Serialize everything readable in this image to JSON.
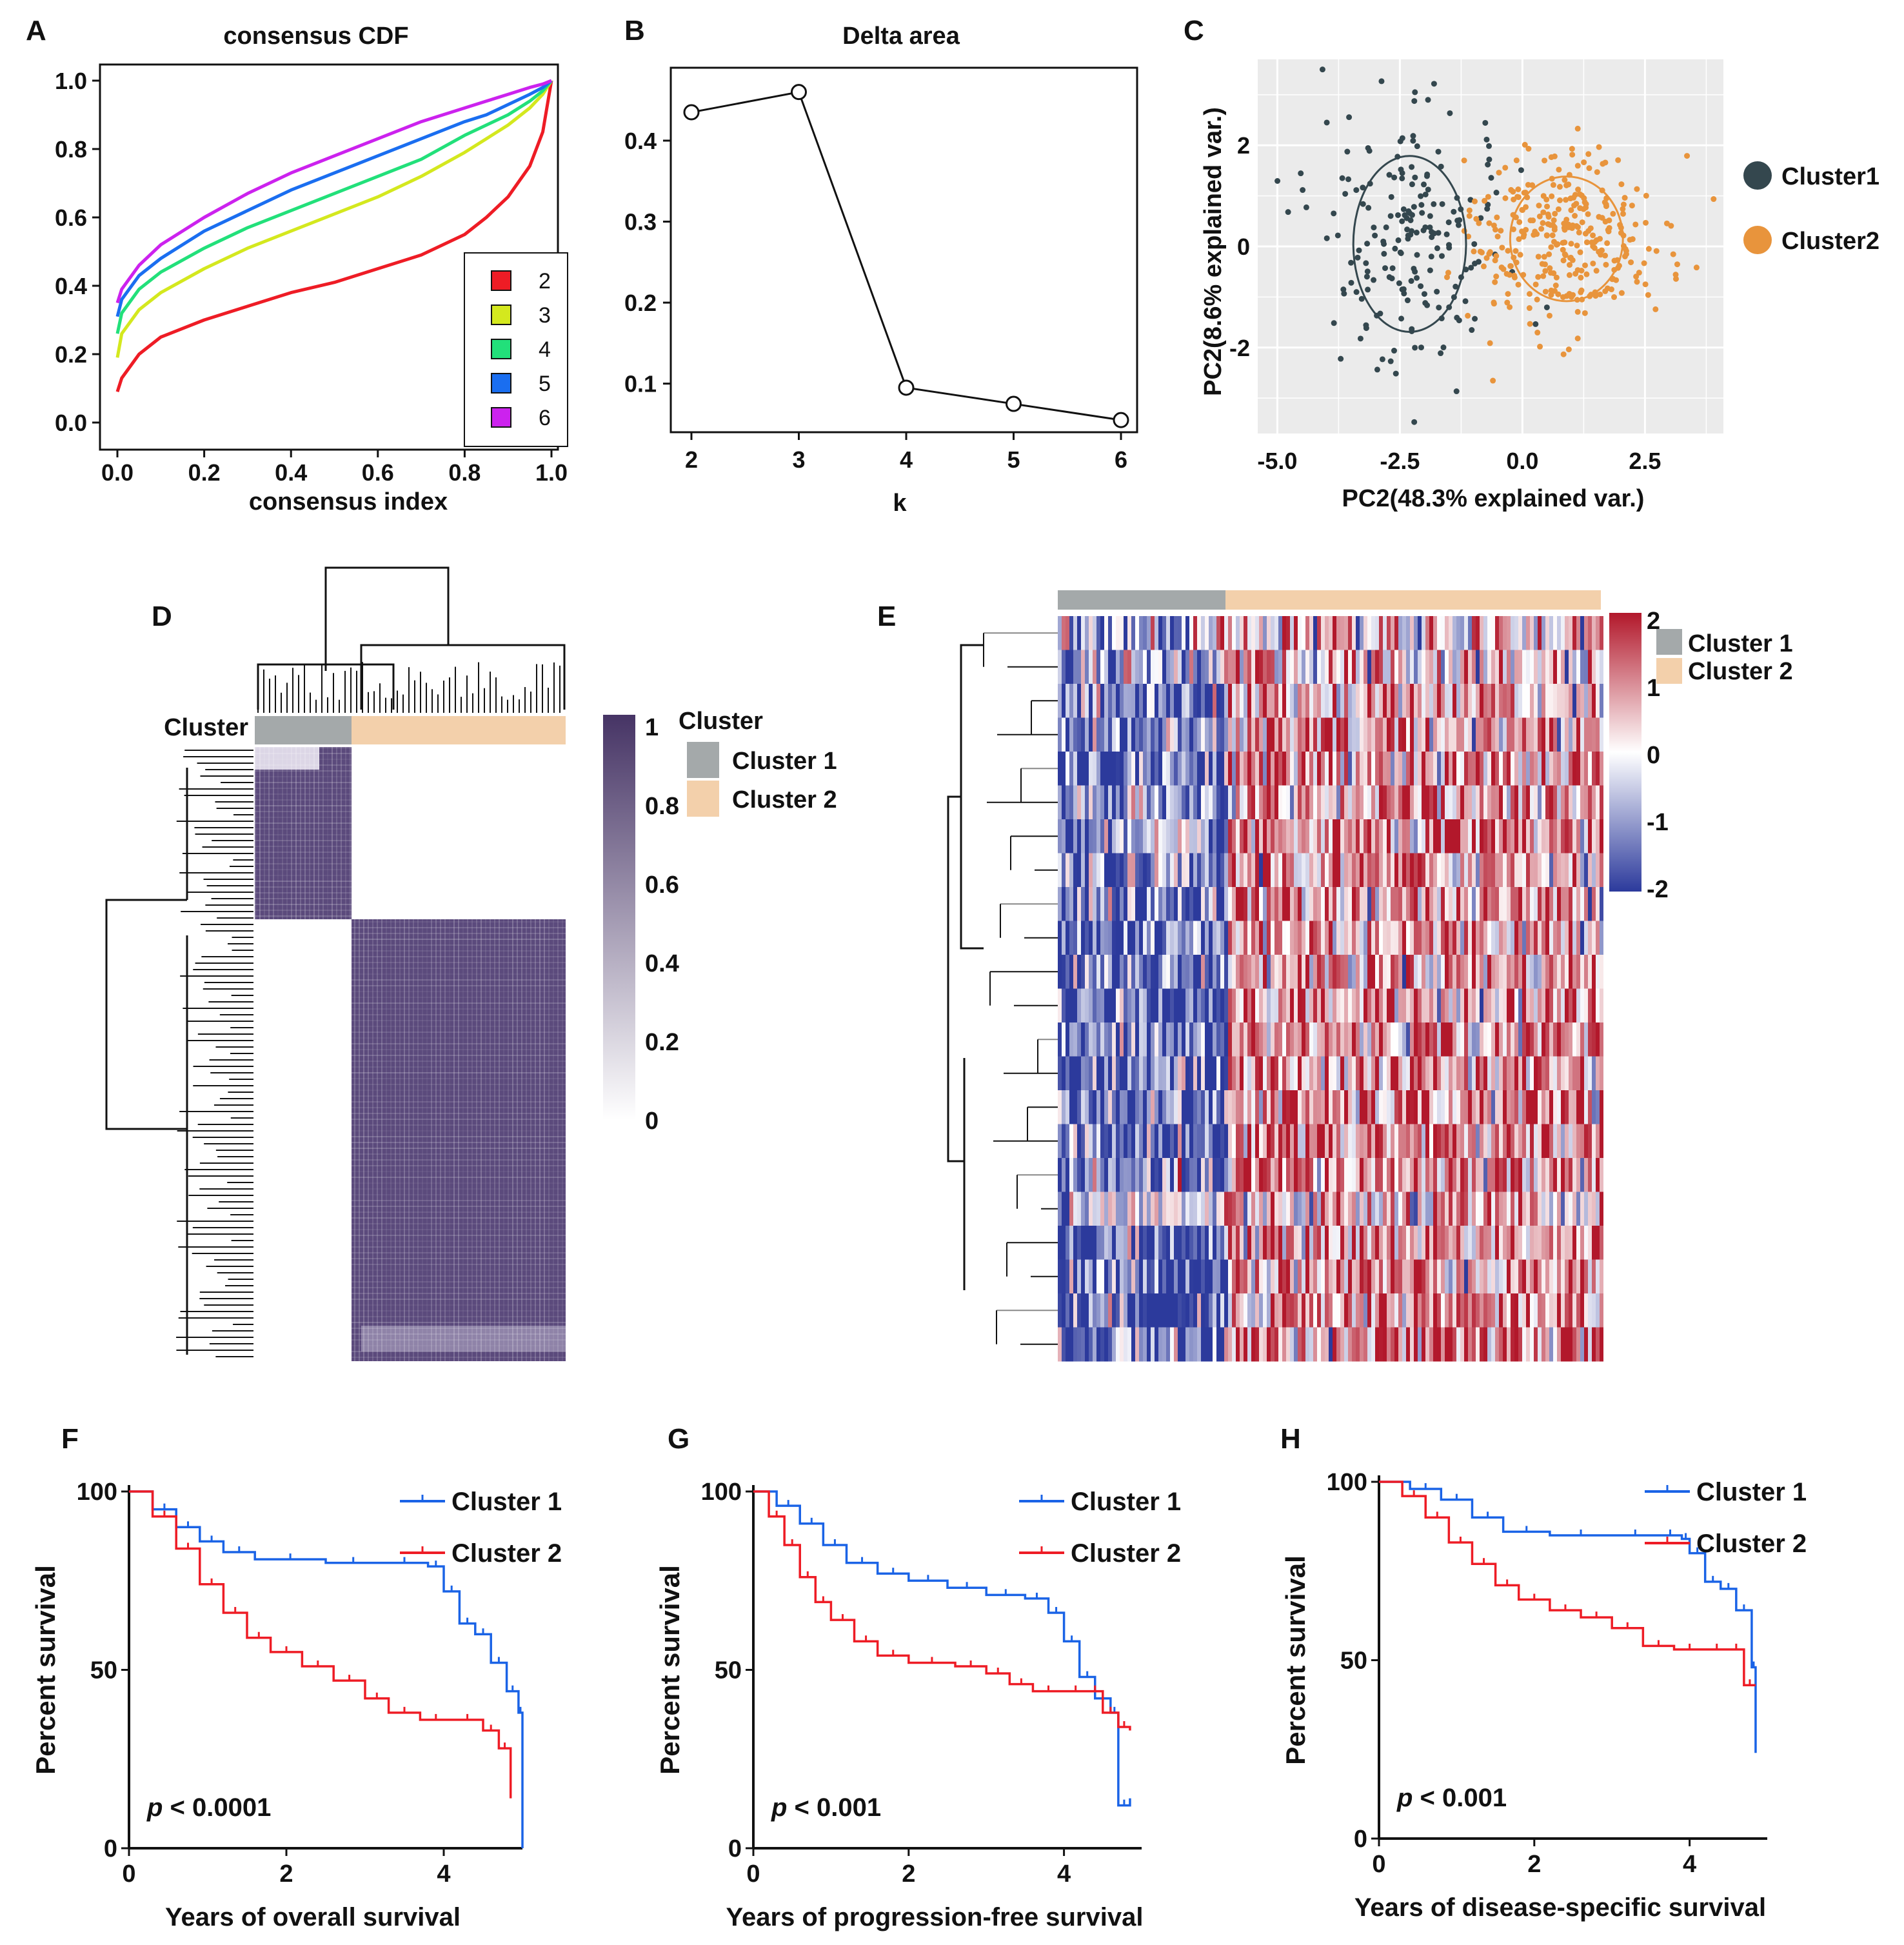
{
  "figure": {
    "panel_letters": [
      "A",
      "B",
      "C",
      "D",
      "E",
      "F",
      "G",
      "H"
    ]
  },
  "chart_data": [
    {
      "panel": "A",
      "type": "line",
      "title": "consensus CDF",
      "xlabel": "consensus index",
      "ylabel": "",
      "xlim": [
        0,
        1
      ],
      "ylim": [
        0,
        1
      ],
      "x_ticks": [
        "0.0",
        "0.2",
        "0.4",
        "0.6",
        "0.8",
        "1.0"
      ],
      "y_ticks": [
        "0.0",
        "0.2",
        "0.4",
        "0.6",
        "0.8",
        "1.0"
      ],
      "legend_position": "bottom-right",
      "x": [
        0,
        0.01,
        0.05,
        0.1,
        0.2,
        0.3,
        0.4,
        0.5,
        0.6,
        0.7,
        0.8,
        0.85,
        0.9,
        0.95,
        0.98,
        1.0
      ],
      "series": [
        {
          "name": "2",
          "color": "#ee1c25",
          "values": [
            0.09,
            0.13,
            0.2,
            0.25,
            0.3,
            0.34,
            0.38,
            0.41,
            0.45,
            0.49,
            0.55,
            0.6,
            0.66,
            0.75,
            0.85,
            1.0
          ]
        },
        {
          "name": "3",
          "color": "#d4e81e",
          "values": [
            0.19,
            0.26,
            0.33,
            0.38,
            0.45,
            0.51,
            0.56,
            0.61,
            0.66,
            0.72,
            0.79,
            0.83,
            0.87,
            0.92,
            0.96,
            1.0
          ]
        },
        {
          "name": "4",
          "color": "#22e07a",
          "values": [
            0.26,
            0.32,
            0.39,
            0.44,
            0.51,
            0.57,
            0.62,
            0.67,
            0.72,
            0.77,
            0.84,
            0.87,
            0.9,
            0.94,
            0.97,
            1.0
          ]
        },
        {
          "name": "5",
          "color": "#1a6ef0",
          "values": [
            0.31,
            0.36,
            0.43,
            0.48,
            0.56,
            0.62,
            0.68,
            0.73,
            0.78,
            0.83,
            0.88,
            0.9,
            0.93,
            0.96,
            0.98,
            1.0
          ]
        },
        {
          "name": "6",
          "color": "#cc22ee",
          "values": [
            0.35,
            0.39,
            0.46,
            0.52,
            0.6,
            0.67,
            0.73,
            0.78,
            0.83,
            0.88,
            0.92,
            0.94,
            0.96,
            0.98,
            0.99,
            1.0
          ]
        }
      ]
    },
    {
      "panel": "B",
      "type": "line",
      "title": "Delta area",
      "xlabel": "k",
      "ylabel": "",
      "categories": [
        "2",
        "3",
        "4",
        "5",
        "6"
      ],
      "values": [
        0.435,
        0.46,
        0.095,
        0.075,
        0.055
      ],
      "x_ticks": [
        "2",
        "3",
        "4",
        "5",
        "6"
      ],
      "y_ticks": [
        "0.1",
        "0.2",
        "0.3",
        "0.4"
      ],
      "ylim": [
        0.04,
        0.49
      ]
    },
    {
      "panel": "C",
      "type": "scatter",
      "title": "",
      "xlabel": "PC2(48.3% explained var.)",
      "ylabel": "PC2(8.6% explained var.)",
      "xlim": [
        -5.4,
        4.1
      ],
      "ylim": [
        -3.7,
        3.7
      ],
      "x_ticks": [
        "-5.0",
        "-2.5",
        "0.0",
        "2.5"
      ],
      "y_ticks": [
        "2",
        "0",
        "-2"
      ],
      "background": "#ebebeb",
      "legend_position": "right",
      "series": [
        {
          "name": "Cluster1",
          "color": "#34474e",
          "center": [
            -2.3,
            0.05
          ],
          "spread": [
            1.0,
            1.2
          ],
          "n": 190
        },
        {
          "name": "Cluster2",
          "color": "#e8943c",
          "center": [
            0.9,
            0.15
          ],
          "spread": [
            1.0,
            0.85
          ],
          "n": 320
        }
      ]
    },
    {
      "panel": "D",
      "type": "heatmap",
      "title": "",
      "annotation_title": "Cluster",
      "colorbar_ticks": [
        "1",
        "0.8",
        "0.6",
        "0.4",
        "0.2",
        "0"
      ],
      "legend_title": "Cluster",
      "legend": [
        {
          "name": "Cluster 1",
          "color": "#a4a9aa"
        },
        {
          "name": "Cluster 2",
          "color": "#f3d0ab"
        }
      ],
      "high_color": "#463465",
      "low_color": "#ffffff"
    },
    {
      "panel": "E",
      "type": "heatmap",
      "title": "",
      "colorbar_ticks": [
        "2",
        "1",
        "0",
        "-1",
        "-2"
      ],
      "legend": [
        {
          "name": "Cluster 1",
          "color": "#a4a9aa"
        },
        {
          "name": "Cluster 2",
          "color": "#f3d0ab"
        }
      ],
      "high_color": "#b2182b",
      "low_color": "#2c3a9c",
      "rows": 22
    },
    {
      "panel": "F",
      "type": "line",
      "title": "",
      "xlabel": "Years of overall survival",
      "ylabel": "Percent survival",
      "pvalue": "p < 0.0001",
      "xlim": [
        0,
        5
      ],
      "ylim": [
        0,
        100
      ],
      "x_ticks": [
        "0",
        "2",
        "4"
      ],
      "y_ticks": [
        "0",
        "50",
        "100"
      ],
      "legend_position": "top-right",
      "series": [
        {
          "name": "Cluster 1",
          "color": "#1a63e6",
          "x": [
            0,
            0.3,
            0.6,
            0.9,
            1.2,
            1.6,
            2.5,
            3.2,
            3.8,
            4.0,
            4.2,
            4.4,
            4.6,
            4.8,
            4.95,
            5.0
          ],
          "values": [
            100,
            95,
            90,
            86,
            83,
            81,
            80,
            80,
            79,
            72,
            63,
            60,
            52,
            44,
            38,
            0
          ]
        },
        {
          "name": "Cluster 2",
          "color": "#ee1c25",
          "x": [
            0,
            0.3,
            0.6,
            0.9,
            1.2,
            1.5,
            1.8,
            2.2,
            2.6,
            3.0,
            3.3,
            3.7,
            4.1,
            4.5,
            4.7,
            4.85
          ],
          "values": [
            100,
            93,
            84,
            74,
            66,
            59,
            55,
            51,
            47,
            42,
            38,
            36,
            36,
            33,
            28,
            14
          ]
        }
      ]
    },
    {
      "panel": "G",
      "type": "line",
      "title": "",
      "xlabel": "Years of progression-free  survival",
      "ylabel": "Percent survival",
      "pvalue": "p < 0.001",
      "xlim": [
        0,
        5
      ],
      "ylim": [
        0,
        100
      ],
      "x_ticks": [
        "0",
        "2",
        "4"
      ],
      "y_ticks": [
        "0",
        "50",
        "100"
      ],
      "legend_position": "top-right",
      "series": [
        {
          "name": "Cluster 1",
          "color": "#1a63e6",
          "x": [
            0,
            0.3,
            0.6,
            0.9,
            1.2,
            1.6,
            2.0,
            2.5,
            3.0,
            3.5,
            3.8,
            4.0,
            4.2,
            4.4,
            4.6,
            4.7,
            4.85
          ],
          "values": [
            100,
            96,
            91,
            85,
            80,
            77,
            75,
            73,
            71,
            70,
            66,
            58,
            48,
            42,
            38,
            12,
            14
          ]
        },
        {
          "name": "Cluster 2",
          "color": "#ee1c25",
          "x": [
            0,
            0.2,
            0.4,
            0.6,
            0.8,
            1.0,
            1.3,
            1.6,
            2.0,
            2.6,
            3.0,
            3.3,
            3.6,
            4.0,
            4.3,
            4.5,
            4.7,
            4.85
          ],
          "values": [
            100,
            93,
            85,
            76,
            69,
            64,
            58,
            54,
            52,
            51,
            49,
            46,
            44,
            44,
            44,
            38,
            34,
            33
          ]
        }
      ]
    },
    {
      "panel": "H",
      "type": "line",
      "title": "",
      "xlabel": "Years of disease-specific  survival",
      "ylabel": "Percent survival",
      "pvalue": "p < 0.001",
      "xlim": [
        0,
        5
      ],
      "ylim": [
        0,
        100
      ],
      "x_ticks": [
        "0",
        "2",
        "4"
      ],
      "y_ticks": [
        "0",
        "50",
        "100"
      ],
      "legend_position": "top-right",
      "series": [
        {
          "name": "Cluster 1",
          "color": "#1a63e6",
          "x": [
            0,
            0.4,
            0.8,
            1.2,
            1.6,
            2.2,
            3.0,
            3.6,
            3.9,
            4.0,
            4.2,
            4.4,
            4.6,
            4.8,
            4.85
          ],
          "values": [
            100,
            98,
            95,
            90,
            86,
            85,
            85,
            85,
            84,
            80,
            72,
            70,
            64,
            48,
            24
          ]
        },
        {
          "name": "Cluster 2",
          "color": "#ee1c25",
          "x": [
            0,
            0.3,
            0.6,
            0.9,
            1.2,
            1.5,
            1.8,
            2.2,
            2.6,
            3.0,
            3.4,
            3.8,
            4.2,
            4.5,
            4.7,
            4.85
          ],
          "values": [
            100,
            96,
            90,
            83,
            77,
            71,
            67,
            64,
            62,
            59,
            54,
            53,
            53,
            53,
            43,
            43
          ]
        }
      ]
    }
  ]
}
